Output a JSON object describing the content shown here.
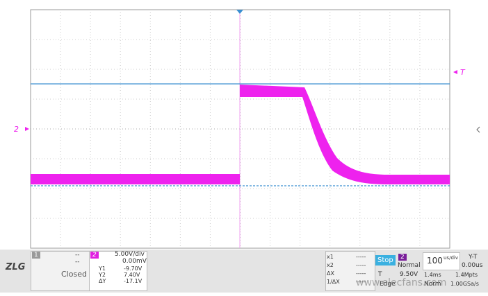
{
  "screen": {
    "channel_marker": "2",
    "trigger_marker": "T"
  },
  "panel": {
    "logo": "ZLG",
    "ch1": {
      "number": "1",
      "offset": "--",
      "scale": "--",
      "state": "Closed"
    },
    "ch2": {
      "number": "2",
      "scale": "5.00V/div",
      "offset": "0.00mV"
    },
    "cursors_y": [
      {
        "label": "Y1",
        "value": "-9.70V"
      },
      {
        "label": "Y2",
        "value": "7.40V"
      },
      {
        "label": "ΔY",
        "value": "-17.1V"
      }
    ],
    "cursors_x": [
      {
        "label": "x1",
        "value": "-----"
      },
      {
        "label": "x2",
        "value": "-----"
      },
      {
        "label": "ΔX",
        "value": "-----"
      },
      {
        "label": "1/ΔX",
        "value": "-----"
      }
    ],
    "run_state": "Stop",
    "trigger": {
      "source": "2",
      "mode": "Normal",
      "type": "T",
      "level": "9.50V",
      "edge": "Edge",
      "sweep": "Norm"
    },
    "timebase": {
      "value": "100",
      "unit": "us/div",
      "mode": "Y-T",
      "position": "0.00us",
      "window": "1.4ms",
      "depth": "1.4Mpts",
      "rate": "1.00GSa/s"
    }
  },
  "watermark": "www.elecfans.com"
}
